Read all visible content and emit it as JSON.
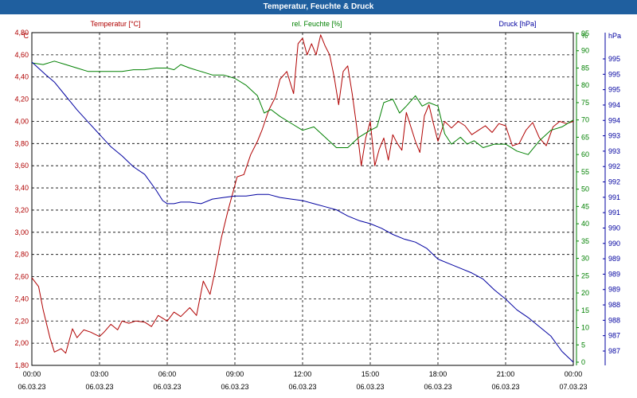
{
  "window": {
    "title": "Temperatur, Feuchte & Druck"
  },
  "colors": {
    "temperature": "#b00000",
    "humidity": "#008000",
    "pressure": "#0000a0",
    "grid": "#000000",
    "titlebar": "#1f5f9f"
  },
  "chart_data": {
    "type": "line",
    "title": "Temperatur, Feuchte & Druck",
    "grid": true,
    "x": {
      "range_h": [
        0,
        24
      ],
      "ticks_h": [
        0,
        3,
        6,
        9,
        12,
        15,
        18,
        21,
        24
      ],
      "time_labels": [
        "00:00",
        "03:00",
        "06:00",
        "09:00",
        "12:00",
        "15:00",
        "18:00",
        "21:00",
        "00:00"
      ],
      "date_labels": [
        "06.03.23",
        "06.03.23",
        "06.03.23",
        "06.03.23",
        "06.03.23",
        "06.03.23",
        "06.03.23",
        "06.03.23",
        "07.03.23"
      ]
    },
    "axes": {
      "temperature": {
        "label": "Temperatur [°C]",
        "unit": "°C",
        "range": [
          1.8,
          4.8
        ],
        "ticks": [
          "1,80",
          "2,00",
          "2,20",
          "2,40",
          "2,60",
          "2,80",
          "3,00",
          "3,20",
          "3,40",
          "3,60",
          "3,80",
          "4,00",
          "4,20",
          "4,40",
          "4,60",
          "4,80"
        ]
      },
      "humidity": {
        "label": "rel. Feuchte [%]",
        "unit": "%",
        "range": [
          0,
          95
        ],
        "ticks": [
          "0",
          "5",
          "10",
          "15",
          "20",
          "25",
          "30",
          "35",
          "40",
          "45",
          "50",
          "55",
          "60",
          "65",
          "70",
          "75",
          "80",
          "85",
          "90",
          "95"
        ]
      },
      "pressure": {
        "label": "Druck [hPa]",
        "unit": "hPa",
        "tick_labels": [
          "987",
          "987",
          "988",
          "988",
          "989",
          "989",
          "989",
          "990",
          "990",
          "991",
          "991",
          "992",
          "992",
          "993",
          "993",
          "994",
          "994",
          "995",
          "995",
          "995"
        ]
      }
    },
    "series": [
      {
        "name": "Temperatur [°C]",
        "axis": "temperature",
        "color": "#b00000",
        "x": [
          0,
          0.3,
          0.5,
          0.8,
          1,
          1.3,
          1.5,
          1.8,
          2,
          2.3,
          2.6,
          3,
          3.2,
          3.5,
          3.8,
          4,
          4.3,
          4.6,
          5,
          5.3,
          5.6,
          6,
          6.3,
          6.6,
          7,
          7.3,
          7.6,
          7.9,
          8.1,
          8.4,
          8.7,
          8.9,
          9.1,
          9.4,
          9.7,
          10,
          10.2,
          10.5,
          10.8,
          11,
          11.3,
          11.6,
          11.8,
          12,
          12.2,
          12.4,
          12.6,
          12.8,
          13,
          13.2,
          13.4,
          13.6,
          13.8,
          14,
          14.2,
          14.4,
          14.6,
          14.8,
          15,
          15.2,
          15.4,
          15.6,
          15.8,
          16,
          16.2,
          16.4,
          16.6,
          16.8,
          17,
          17.2,
          17.4,
          17.6,
          17.8,
          18,
          18.3,
          18.6,
          18.9,
          19.2,
          19.5,
          19.8,
          20.1,
          20.4,
          20.7,
          21,
          21.3,
          21.6,
          21.9,
          22.2,
          22.5,
          22.8,
          23.1,
          23.4,
          23.7,
          24
        ],
        "values": [
          2.59,
          2.51,
          2.3,
          2.05,
          1.92,
          1.95,
          1.91,
          2.13,
          2.05,
          2.12,
          2.1,
          2.06,
          2.1,
          2.17,
          2.12,
          2.2,
          2.18,
          2.2,
          2.19,
          2.15,
          2.25,
          2.2,
          2.28,
          2.24,
          2.32,
          2.25,
          2.56,
          2.44,
          2.63,
          2.95,
          3.2,
          3.35,
          3.5,
          3.52,
          3.7,
          3.82,
          3.92,
          4.1,
          4.22,
          4.38,
          4.45,
          4.25,
          4.7,
          4.75,
          4.6,
          4.7,
          4.6,
          4.78,
          4.68,
          4.6,
          4.4,
          4.15,
          4.45,
          4.5,
          4.25,
          3.95,
          3.6,
          3.85,
          4.0,
          3.6,
          3.75,
          3.85,
          3.65,
          3.88,
          3.8,
          3.74,
          4.08,
          3.95,
          3.82,
          3.72,
          4.05,
          4.15,
          3.98,
          3.82,
          4.0,
          3.94,
          4.0,
          3.96,
          3.88,
          3.92,
          3.96,
          3.9,
          3.98,
          3.96,
          3.78,
          3.8,
          3.92,
          3.99,
          3.85,
          3.78,
          3.95,
          4.0,
          3.98,
          4.0
        ]
      },
      {
        "name": "rel. Feuchte [%]",
        "axis": "humidity",
        "color": "#008000",
        "x": [
          0,
          0.5,
          1,
          1.5,
          2,
          2.5,
          3,
          3.5,
          4,
          4.5,
          5,
          5.5,
          6,
          6.3,
          6.6,
          7,
          7.5,
          8,
          8.5,
          9,
          9.5,
          10,
          10.3,
          10.6,
          11,
          11.5,
          12,
          12.5,
          13,
          13.5,
          14,
          14.5,
          15,
          15.3,
          15.6,
          16,
          16.3,
          16.6,
          17,
          17.3,
          17.6,
          18,
          18.3,
          18.6,
          19,
          19.3,
          19.6,
          20,
          20.5,
          21,
          21.5,
          22,
          22.5,
          23,
          23.5,
          24
        ],
        "values": [
          86.5,
          86,
          87,
          86,
          85,
          84,
          84,
          84,
          84,
          84.5,
          84.5,
          85,
          85,
          84.5,
          86,
          85,
          84,
          83,
          83,
          82,
          80,
          77,
          72,
          73,
          71,
          69,
          67,
          68,
          65,
          62,
          62,
          65,
          67,
          68,
          75,
          76,
          72,
          74,
          77,
          74,
          75,
          74,
          66,
          63,
          65,
          63,
          64,
          62,
          63,
          63,
          61,
          60,
          64,
          67,
          68,
          70
        ]
      },
      {
        "name": "Druck [hPa]",
        "axis": "pressure",
        "color": "#0000a0",
        "x": [
          0,
          0.3,
          0.6,
          1,
          1.5,
          2,
          2.5,
          3,
          3.5,
          4,
          4.5,
          5,
          5.5,
          5.8,
          6,
          6.3,
          6.6,
          7,
          7.5,
          8,
          8.5,
          9,
          9.5,
          10,
          10.5,
          11,
          11.5,
          12,
          12.5,
          13,
          13.5,
          14,
          14.5,
          15,
          15.5,
          16,
          16.5,
          17,
          17.5,
          18,
          18.5,
          19,
          19.5,
          20,
          20.5,
          21,
          21.5,
          22,
          22.5,
          23,
          23.5,
          24
        ],
        "values": [
          995.6,
          995.4,
          995.2,
          994.95,
          994.5,
          994.05,
          993.65,
          993.25,
          992.85,
          992.55,
          992.2,
          991.95,
          991.45,
          991.1,
          991.0,
          991.0,
          991.05,
          991.05,
          991.0,
          991.15,
          991.2,
          991.25,
          991.25,
          991.3,
          991.3,
          991.2,
          991.15,
          991.1,
          991.0,
          990.9,
          990.8,
          990.6,
          990.45,
          990.35,
          990.2,
          990.0,
          989.85,
          989.75,
          989.55,
          989.2,
          989.05,
          988.9,
          988.75,
          988.55,
          988.2,
          987.9,
          987.55,
          987.3,
          987.0,
          986.7,
          986.2,
          985.85
        ]
      }
    ]
  }
}
